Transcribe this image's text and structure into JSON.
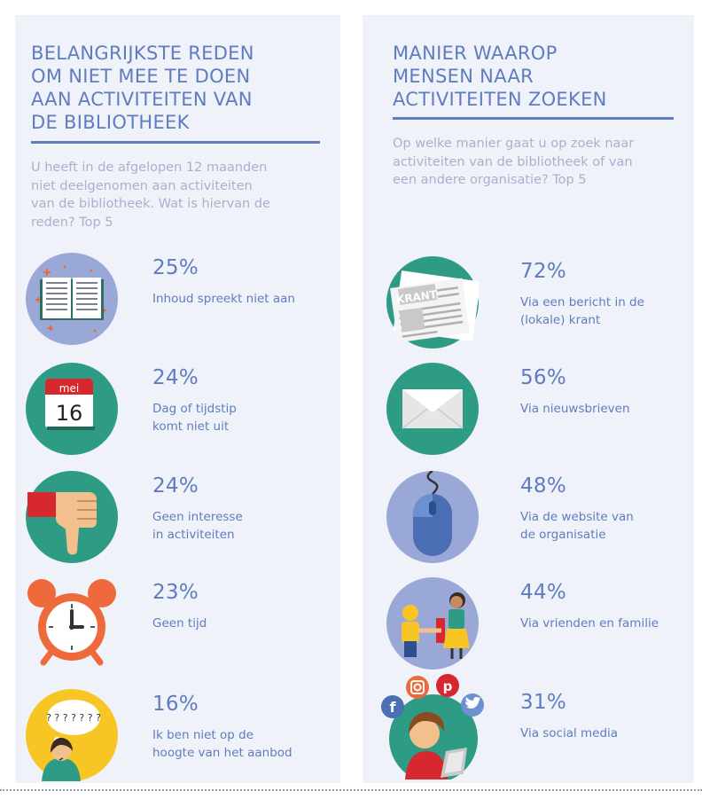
{
  "left": {
    "title": "BELANGRIJKSTE REDEN\nOM NIET MEE TE DOEN\nAAN ACTIVITEITEN VAN\nDE BIBLIOTHEEK",
    "question": "U heeft in de afgelopen 12 maanden\nniet deelgenomen aan activiteiten\nvan de bibliotheek. Wat is hiervan de\nreden? Top 5",
    "items": [
      {
        "percent": "25%",
        "label": "Inhoud spreekt niet aan",
        "icon": "book-icon"
      },
      {
        "percent": "24%",
        "label": "Dag of tijdstip\nkomt niet uit",
        "icon": "calendar-icon"
      },
      {
        "percent": "24%",
        "label": "Geen interesse\nin activiteiten",
        "icon": "thumbs-down-icon"
      },
      {
        "percent": "23%",
        "label": "Geen tijd",
        "icon": "alarm-clock-icon"
      },
      {
        "percent": "16%",
        "label": "Ik ben niet op de\nhoogte van het aanbod",
        "icon": "confused-person-icon"
      }
    ]
  },
  "right": {
    "title": "MANIER WAAROP\nMENSEN NAAR\nACTIVITEITEN ZOEKEN",
    "question": "Op welke manier gaat u op zoek naar\nactiviteiten van de bibliotheek of van\neen andere organisatie? Top 5",
    "items": [
      {
        "percent": "72%",
        "label": "Via een bericht in de\n(lokale) krant",
        "icon": "newspaper-icon"
      },
      {
        "percent": "56%",
        "label": "Via nieuwsbrieven",
        "icon": "envelope-icon"
      },
      {
        "percent": "48%",
        "label": "Via de website van\nde organisatie",
        "icon": "mouse-icon"
      },
      {
        "percent": "44%",
        "label": "Via vrienden en familie",
        "icon": "friends-icon"
      },
      {
        "percent": "31%",
        "label": "Via social media",
        "icon": "social-media-icon"
      }
    ]
  },
  "icon_text": {
    "calendar_month": "mei",
    "calendar_day": "16",
    "newspaper_word": "KRANT",
    "question_marks": "? ? ? ? ? ? ?"
  },
  "colors": {
    "accent_blue": "#5f7cbf",
    "question_grey": "#a6b2cc",
    "panel_bg": "#f0f2fa",
    "teal": "#2e9c84",
    "lavender": "#9aa8d8",
    "orange": "#ee6a3c",
    "yellow": "#f7c625",
    "red": "#d6282e"
  }
}
